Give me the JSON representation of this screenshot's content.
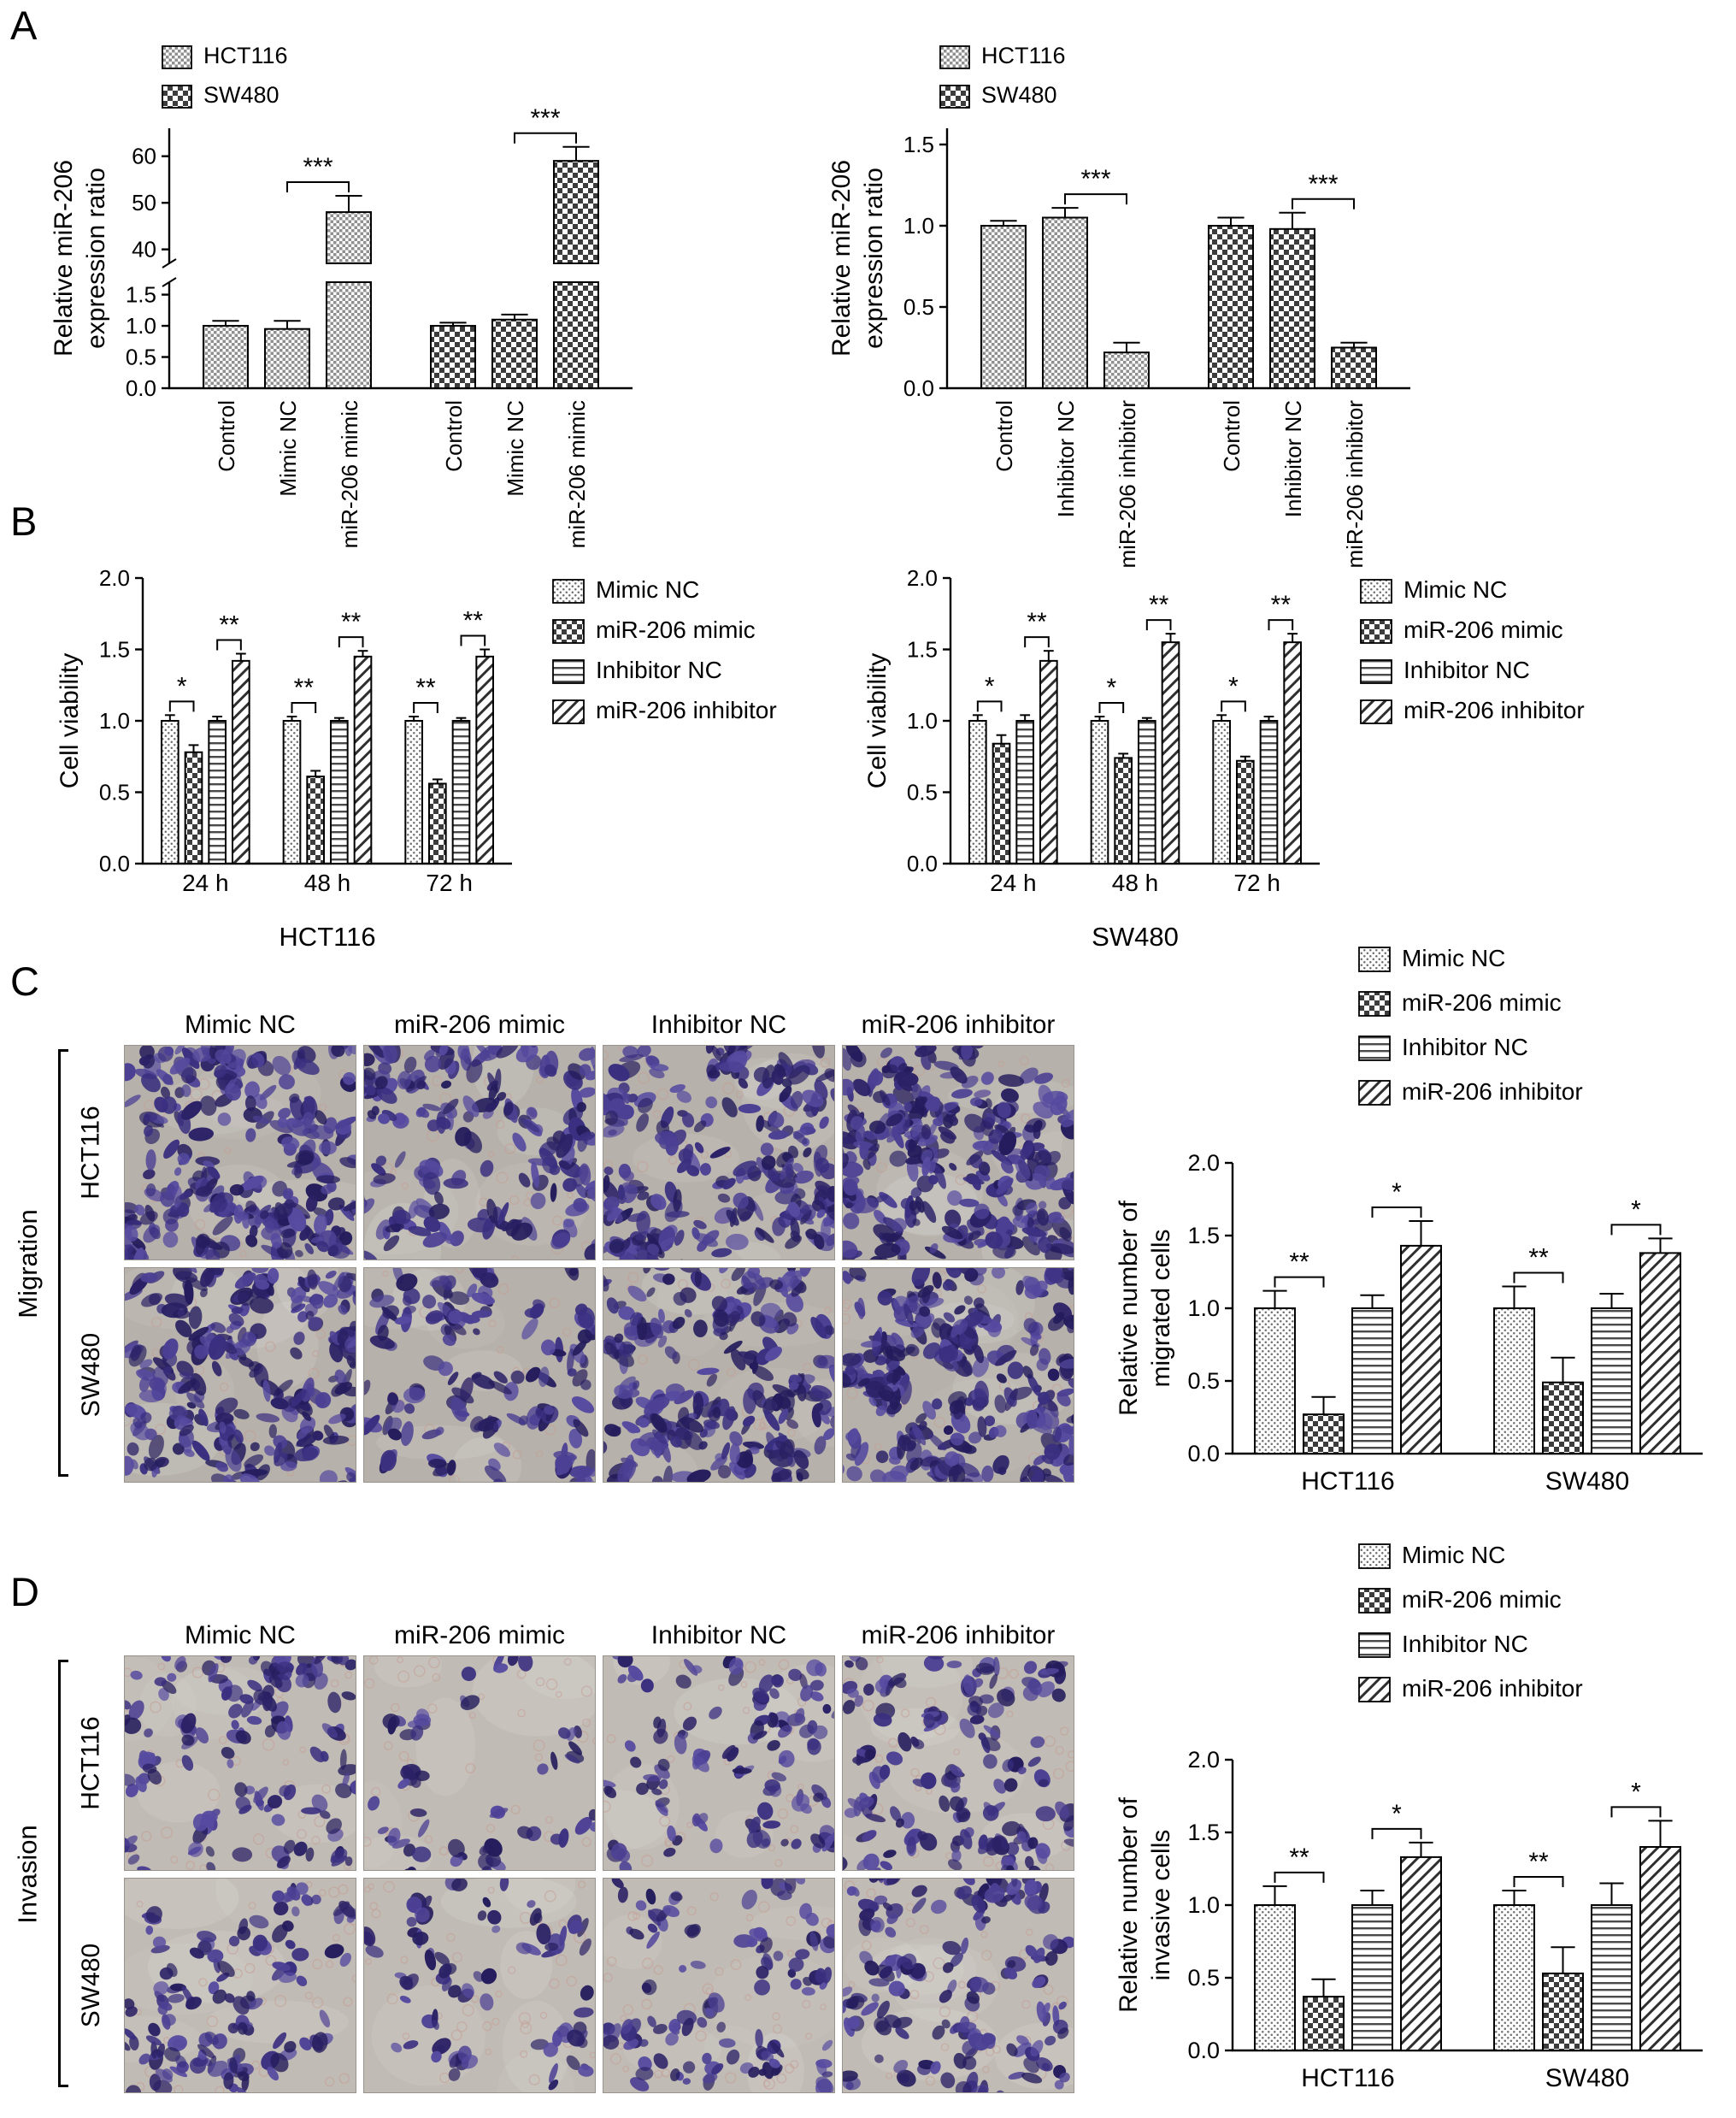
{
  "figure": {
    "panels": {
      "a": {
        "letter": "A"
      },
      "b": {
        "letter": "B"
      },
      "c": {
        "letter": "C",
        "side_label": "Migration"
      },
      "d": {
        "letter": "D",
        "side_label": "Invasion"
      }
    },
    "treatments": [
      "Mimic NC",
      "miR-206 mimic",
      "Inhibitor NC",
      "miR-206 inhibitor"
    ],
    "cell_lines": [
      "HCT116",
      "SW480"
    ]
  },
  "chart_data": [
    {
      "id": "a1",
      "type": "bar",
      "ylabel": [
        "Relative miR-206",
        "expression ratio"
      ],
      "legend": [
        {
          "label": "HCT116",
          "pattern": "checkFine"
        },
        {
          "label": "SW480",
          "pattern": "checkCoarse"
        }
      ],
      "axis_break": {
        "lower_max": 1.7,
        "lower_ticks": [
          0,
          0.5,
          1,
          1.5
        ],
        "upper_min": 37,
        "upper_max": 66,
        "upper_ticks": [
          40,
          50,
          60
        ]
      },
      "groups": [
        {
          "cell_line": "HCT116",
          "pattern": "checkFine",
          "bars": [
            {
              "label": "Control",
              "value": 1.0,
              "err": 0.08
            },
            {
              "label": "Mimic NC",
              "value": 0.95,
              "err": 0.13
            },
            {
              "label": "miR-206 mimic",
              "value": 48,
              "err": 3.5
            }
          ]
        },
        {
          "cell_line": "SW480",
          "pattern": "checkCoarse",
          "bars": [
            {
              "label": "Control",
              "value": 1.0,
              "err": 0.05
            },
            {
              "label": "Mimic NC",
              "value": 1.1,
              "err": 0.08
            },
            {
              "label": "miR-206 mimic",
              "value": 59,
              "err": 3.0
            }
          ]
        }
      ],
      "sig": [
        {
          "group": 0,
          "a": 1,
          "b": 2,
          "label": "***"
        },
        {
          "group": 1,
          "a": 1,
          "b": 2,
          "label": "***"
        }
      ]
    },
    {
      "id": "a2",
      "type": "bar",
      "ylabel": [
        "Relative miR-206",
        "expression ratio"
      ],
      "legend": [
        {
          "label": "HCT116",
          "pattern": "checkFine"
        },
        {
          "label": "SW480",
          "pattern": "checkCoarse"
        }
      ],
      "ylim": [
        0,
        1.6
      ],
      "yticks": [
        0,
        0.5,
        1,
        1.5
      ],
      "groups": [
        {
          "cell_line": "HCT116",
          "pattern": "checkFine",
          "bars": [
            {
              "label": "Control",
              "value": 1.0,
              "err": 0.03
            },
            {
              "label": "Inhibitor NC",
              "value": 1.05,
              "err": 0.06
            },
            {
              "label": "miR-206 inhibitor",
              "value": 0.22,
              "err": 0.06
            }
          ]
        },
        {
          "cell_line": "SW480",
          "pattern": "checkCoarse",
          "bars": [
            {
              "label": "Control",
              "value": 1.0,
              "err": 0.05
            },
            {
              "label": "Inhibitor NC",
              "value": 0.98,
              "err": 0.1
            },
            {
              "label": "miR-206 inhibitor",
              "value": 0.25,
              "err": 0.03
            }
          ]
        }
      ],
      "sig": [
        {
          "group": 0,
          "a": 1,
          "b": 2,
          "label": "***"
        },
        {
          "group": 1,
          "a": 1,
          "b": 2,
          "label": "***"
        }
      ]
    },
    {
      "id": "b1",
      "type": "bar",
      "ylabel": [
        "Cell viability"
      ],
      "xlabel": "HCT116",
      "ylim": [
        0,
        2.0
      ],
      "yticks": [
        0,
        0.5,
        1,
        1.5,
        2
      ],
      "series_patterns": [
        "stipple",
        "checkCoarse",
        "hlines",
        "diag"
      ],
      "legend_from_treatments": true,
      "groups": [
        {
          "group_label": "24 h",
          "bars": [
            {
              "value": 1.0,
              "err": 0.04
            },
            {
              "value": 0.78,
              "err": 0.05
            },
            {
              "value": 1.0,
              "err": 0.03
            },
            {
              "value": 1.42,
              "err": 0.05
            }
          ]
        },
        {
          "group_label": "48 h",
          "bars": [
            {
              "value": 1.0,
              "err": 0.03
            },
            {
              "value": 0.61,
              "err": 0.04
            },
            {
              "value": 1.0,
              "err": 0.02
            },
            {
              "value": 1.45,
              "err": 0.04
            }
          ]
        },
        {
          "group_label": "72 h",
          "bars": [
            {
              "value": 1.0,
              "err": 0.03
            },
            {
              "value": 0.56,
              "err": 0.03
            },
            {
              "value": 1.0,
              "err": 0.02
            },
            {
              "value": 1.45,
              "err": 0.05
            }
          ]
        }
      ],
      "sig": [
        {
          "group": 0,
          "a": 0,
          "b": 1,
          "label": "*"
        },
        {
          "group": 0,
          "a": 2,
          "b": 3,
          "label": "**"
        },
        {
          "group": 1,
          "a": 0,
          "b": 1,
          "label": "**"
        },
        {
          "group": 1,
          "a": 2,
          "b": 3,
          "label": "**"
        },
        {
          "group": 2,
          "a": 0,
          "b": 1,
          "label": "**"
        },
        {
          "group": 2,
          "a": 2,
          "b": 3,
          "label": "**"
        }
      ]
    },
    {
      "id": "b2",
      "type": "bar",
      "ylabel": [
        "Cell viability"
      ],
      "xlabel": "SW480",
      "ylim": [
        0,
        2.0
      ],
      "yticks": [
        0,
        0.5,
        1,
        1.5,
        2
      ],
      "series_patterns": [
        "stipple",
        "checkCoarse",
        "hlines",
        "diag"
      ],
      "legend_from_treatments": true,
      "groups": [
        {
          "group_label": "24 h",
          "bars": [
            {
              "value": 1.0,
              "err": 0.04
            },
            {
              "value": 0.84,
              "err": 0.06
            },
            {
              "value": 1.0,
              "err": 0.04
            },
            {
              "value": 1.42,
              "err": 0.07
            }
          ]
        },
        {
          "group_label": "48 h",
          "bars": [
            {
              "value": 1.0,
              "err": 0.03
            },
            {
              "value": 0.74,
              "err": 0.03
            },
            {
              "value": 1.0,
              "err": 0.02
            },
            {
              "value": 1.55,
              "err": 0.06
            }
          ]
        },
        {
          "group_label": "72 h",
          "bars": [
            {
              "value": 1.0,
              "err": 0.04
            },
            {
              "value": 0.72,
              "err": 0.03
            },
            {
              "value": 1.0,
              "err": 0.03
            },
            {
              "value": 1.55,
              "err": 0.06
            }
          ]
        }
      ],
      "sig": [
        {
          "group": 0,
          "a": 0,
          "b": 1,
          "label": "*"
        },
        {
          "group": 0,
          "a": 2,
          "b": 3,
          "label": "**"
        },
        {
          "group": 1,
          "a": 0,
          "b": 1,
          "label": "*"
        },
        {
          "group": 1,
          "a": 2,
          "b": 3,
          "label": "**"
        },
        {
          "group": 2,
          "a": 0,
          "b": 1,
          "label": "*"
        },
        {
          "group": 2,
          "a": 2,
          "b": 3,
          "label": "**"
        }
      ]
    },
    {
      "id": "c",
      "type": "bar",
      "ylabel": [
        "Relative number of",
        "migrated cells"
      ],
      "ylim": [
        0,
        2.0
      ],
      "yticks": [
        0,
        0.5,
        1,
        1.5,
        2
      ],
      "series_patterns": [
        "stipple",
        "checkCoarse",
        "hlines",
        "diag"
      ],
      "legend_from_treatments": true,
      "groups": [
        {
          "group_label": "HCT116",
          "bars": [
            {
              "value": 1.0,
              "err": 0.12
            },
            {
              "value": 0.27,
              "err": 0.12
            },
            {
              "value": 1.0,
              "err": 0.09
            },
            {
              "value": 1.43,
              "err": 0.17
            }
          ]
        },
        {
          "group_label": "SW480",
          "bars": [
            {
              "value": 1.0,
              "err": 0.15
            },
            {
              "value": 0.49,
              "err": 0.17
            },
            {
              "value": 1.0,
              "err": 0.1
            },
            {
              "value": 1.38,
              "err": 0.1
            }
          ]
        }
      ],
      "sig": [
        {
          "group": 0,
          "a": 0,
          "b": 1,
          "label": "**"
        },
        {
          "group": 0,
          "a": 2,
          "b": 3,
          "label": "*"
        },
        {
          "group": 1,
          "a": 0,
          "b": 1,
          "label": "**"
        },
        {
          "group": 1,
          "a": 2,
          "b": 3,
          "label": "*"
        }
      ]
    },
    {
      "id": "d",
      "type": "bar",
      "ylabel": [
        "Relative number of",
        "invasive cells"
      ],
      "ylim": [
        0,
        2.0
      ],
      "yticks": [
        0,
        0.5,
        1,
        1.5,
        2
      ],
      "series_patterns": [
        "stipple",
        "checkCoarse",
        "hlines",
        "diag"
      ],
      "legend_from_treatments": true,
      "groups": [
        {
          "group_label": "HCT116",
          "bars": [
            {
              "value": 1.0,
              "err": 0.13
            },
            {
              "value": 0.37,
              "err": 0.12
            },
            {
              "value": 1.0,
              "err": 0.1
            },
            {
              "value": 1.33,
              "err": 0.1
            }
          ]
        },
        {
          "group_label": "SW480",
          "bars": [
            {
              "value": 1.0,
              "err": 0.1
            },
            {
              "value": 0.53,
              "err": 0.18
            },
            {
              "value": 1.0,
              "err": 0.15
            },
            {
              "value": 1.4,
              "err": 0.18
            }
          ]
        }
      ],
      "sig": [
        {
          "group": 0,
          "a": 0,
          "b": 1,
          "label": "**"
        },
        {
          "group": 0,
          "a": 2,
          "b": 3,
          "label": "*"
        },
        {
          "group": 1,
          "a": 0,
          "b": 1,
          "label": "**"
        },
        {
          "group": 1,
          "a": 2,
          "b": 3,
          "label": "*"
        }
      ]
    }
  ],
  "micrographs": {
    "migration": {
      "row_labels": [
        "HCT116",
        "SW480"
      ],
      "relative_cell_density": [
        [
          150,
          95,
          140,
          165
        ],
        [
          140,
          80,
          130,
          155
        ]
      ]
    },
    "invasion": {
      "row_labels": [
        "HCT116",
        "SW480"
      ],
      "relative_cell_density": [
        [
          75,
          30,
          60,
          85
        ],
        [
          70,
          42,
          62,
          82
        ]
      ]
    }
  }
}
